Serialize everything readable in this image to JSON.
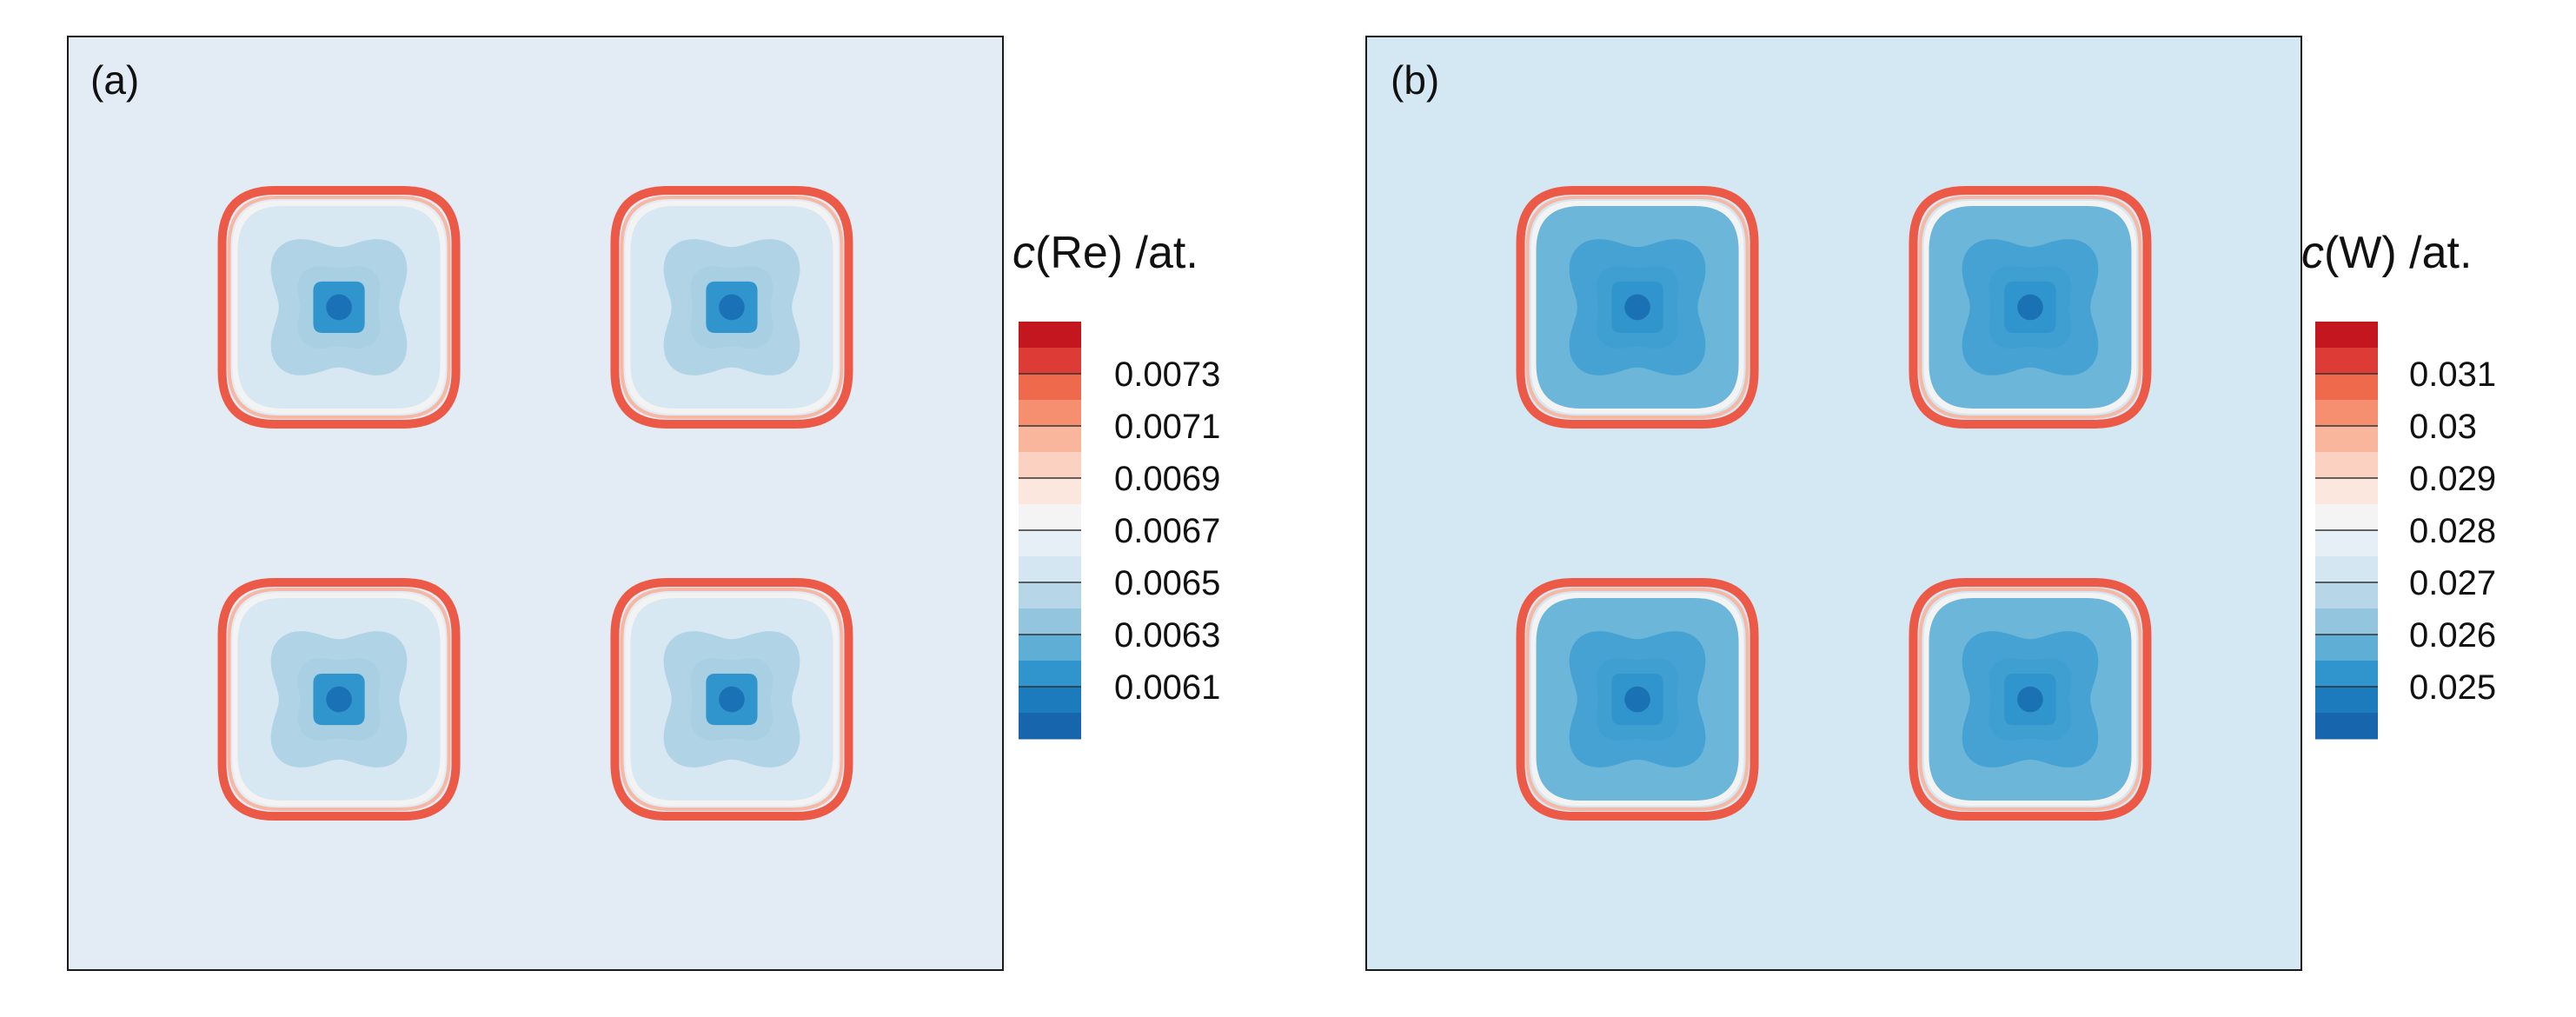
{
  "chart_data": [
    {
      "type": "heatmap",
      "panel_label": "(a)",
      "colorbar_title": {
        "symbol": "c",
        "rest": "(Re) /at."
      },
      "colorbar_ticks": [
        "0.0073",
        "0.0071",
        "0.0069",
        "0.0067",
        "0.0065",
        "0.0063",
        "0.0061"
      ],
      "levels": [
        0.0075,
        0.0074,
        0.0073,
        0.0072,
        0.0071,
        0.007,
        0.0069,
        0.0068,
        0.0067,
        0.0066,
        0.0065,
        0.0064,
        0.0063,
        0.0062,
        0.0061,
        0.006
      ],
      "background_level": 0.00665,
      "precipitate_rim_level": 0.0074,
      "precipitate_core_level": 0.006,
      "precipitates": 4,
      "colors": {
        "background": "#e3ecf4",
        "rim": "#ec5a47",
        "inner": "#d8e8f2",
        "mid": "#a9cfe3",
        "core": "#1b71b5"
      }
    },
    {
      "type": "heatmap",
      "panel_label": "(b)",
      "colorbar_title": {
        "symbol": "c",
        "rest": "(W) /at."
      },
      "colorbar_ticks": [
        "0.031",
        "0.03",
        "0.029",
        "0.028",
        "0.027",
        "0.026",
        "0.025"
      ],
      "levels": [
        0.032,
        0.0315,
        0.031,
        0.0305,
        0.03,
        0.0295,
        0.029,
        0.0285,
        0.028,
        0.0275,
        0.027,
        0.0265,
        0.026,
        0.0255,
        0.025,
        0.0245
      ],
      "background_level": 0.0276,
      "precipitate_rim_level": 0.0315,
      "precipitate_core_level": 0.0245,
      "precipitates": 4,
      "colors": {
        "background": "#d3e8f2",
        "rim": "#ec5a47",
        "inner": "#6cb6da",
        "mid": "#3e9fd0",
        "core": "#1a72b5"
      }
    }
  ],
  "colorbar_colors": [
    "#c4161f",
    "#dd3b35",
    "#ef6a4c",
    "#f58f70",
    "#f9b69c",
    "#fbd2c1",
    "#fce7de",
    "#f4f4f4",
    "#e5eff5",
    "#d3e6f1",
    "#b7d7e8",
    "#93c5df",
    "#5faed5",
    "#2f95cc",
    "#1b7bbd",
    "#1766ad"
  ]
}
